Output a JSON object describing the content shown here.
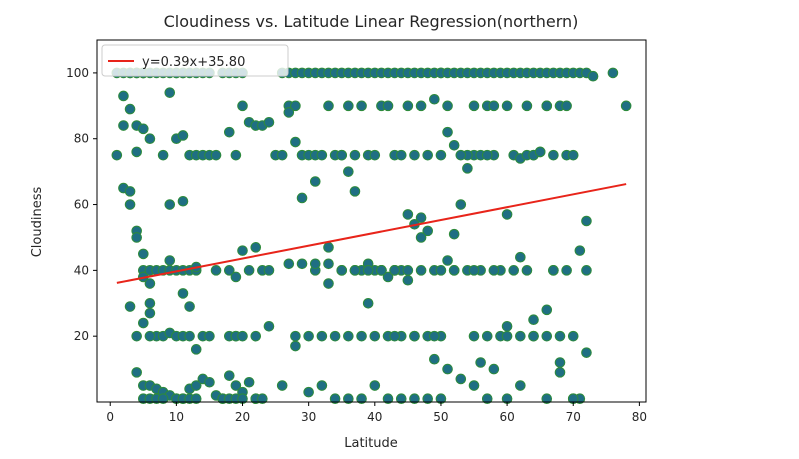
{
  "chart_data": {
    "type": "scatter",
    "title": "Cloudiness vs. Latitude Linear Regression(northern)",
    "xlabel": "Latitude",
    "ylabel": "Cloudiness",
    "xlim": [
      -2,
      81
    ],
    "ylim": [
      0,
      110
    ],
    "xticks": [
      "0",
      "10",
      "20",
      "30",
      "40",
      "50",
      "60",
      "70",
      "80"
    ],
    "yticks": [
      "20",
      "40",
      "60",
      "80",
      "100"
    ],
    "grid": false,
    "legend_placement": "upper-left",
    "colors": {
      "marker_fill": "#1f6f83",
      "marker_edge": "#2e8b3a",
      "line": "#e8241a",
      "frame": "#000000"
    },
    "series": [
      {
        "type": "scatter",
        "x": [
          1,
          2,
          3,
          3,
          4,
          4,
          5,
          5,
          5,
          6,
          7,
          8,
          9,
          10,
          10,
          11,
          11,
          12,
          13,
          14,
          15,
          17,
          18,
          19,
          20,
          1,
          2,
          3,
          4,
          5,
          6,
          8,
          9,
          10,
          11,
          12,
          13,
          14,
          15,
          16,
          18,
          19,
          20,
          21,
          22,
          23,
          24,
          25,
          2,
          3,
          3,
          4,
          4,
          5,
          5,
          5,
          6,
          6,
          7,
          8,
          9,
          9,
          10,
          11,
          11,
          12,
          12,
          13,
          18,
          20,
          22,
          23,
          24,
          3,
          4,
          5,
          6,
          6,
          7,
          8,
          9,
          10,
          11,
          12,
          13,
          14,
          15,
          18,
          19,
          19,
          20,
          22,
          4,
          5,
          6,
          7,
          8,
          9,
          10,
          11,
          12,
          13,
          14,
          15,
          16,
          17,
          18,
          19,
          20,
          21,
          22,
          5,
          6,
          7,
          8,
          10,
          11,
          12,
          13,
          17,
          18,
          19,
          20,
          22,
          23,
          26,
          27,
          28,
          29,
          30,
          31,
          32,
          33,
          34,
          35,
          36,
          37,
          38,
          39,
          40,
          41,
          42,
          43,
          44,
          45,
          46,
          47,
          48,
          49,
          50,
          26,
          27,
          28,
          29,
          30,
          31,
          32,
          33,
          34,
          35,
          36,
          37,
          38,
          39,
          40,
          41,
          42,
          43,
          44,
          45,
          46,
          47,
          48,
          49,
          50,
          27,
          28,
          29,
          31,
          33,
          35,
          36,
          37,
          38,
          39,
          40,
          41,
          42,
          43,
          44,
          45,
          46,
          47,
          48,
          49,
          28,
          30,
          32,
          34,
          36,
          38,
          40,
          42,
          44,
          46,
          48,
          50,
          26,
          28,
          30,
          32,
          34,
          36,
          38,
          40,
          42,
          44,
          46,
          48,
          50,
          31,
          33,
          35,
          37,
          39,
          41,
          43,
          45,
          47,
          49,
          50,
          51,
          52,
          53,
          54,
          55,
          56,
          57,
          58,
          59,
          60,
          61,
          62,
          63,
          64,
          65,
          66,
          67,
          68,
          69,
          70,
          71,
          72,
          73,
          50,
          51,
          52,
          53,
          54,
          55,
          56,
          57,
          58,
          59,
          60,
          61,
          62,
          63,
          64,
          65,
          66,
          67,
          68,
          69,
          51,
          52,
          54,
          55,
          56,
          57,
          58,
          60,
          62,
          63,
          64,
          65,
          66,
          67,
          69,
          70,
          71,
          51,
          53,
          55,
          57,
          59,
          60,
          62,
          64,
          66,
          68,
          70,
          72,
          52,
          54,
          56,
          58,
          60,
          62,
          64,
          66,
          68,
          70,
          71,
          51,
          53,
          55,
          57,
          60,
          64,
          66,
          68,
          70,
          72,
          76,
          78,
          2,
          4,
          6,
          9,
          11,
          13,
          16,
          19,
          21,
          24,
          27,
          29,
          31,
          33,
          35,
          37,
          39,
          41,
          43,
          45,
          47,
          52,
          55,
          58,
          61,
          63,
          67,
          69,
          72,
          43,
          46,
          49
        ],
        "y": [
          100,
          100,
          100,
          100,
          100,
          100,
          100,
          100,
          100,
          100,
          100,
          100,
          100,
          100,
          100,
          100,
          100,
          100,
          100,
          100,
          100,
          100,
          100,
          100,
          100,
          75,
          93,
          89,
          84,
          83,
          80,
          75,
          94,
          80,
          81,
          75,
          75,
          75,
          75,
          75,
          82,
          75,
          90,
          85,
          84,
          84,
          85,
          75,
          65,
          64,
          60,
          52,
          50,
          45,
          40,
          38,
          40,
          36,
          40,
          40,
          43,
          40,
          40,
          40,
          33,
          29,
          40,
          40,
          40,
          46,
          47,
          40,
          40,
          29,
          20,
          24,
          30,
          27,
          20,
          20,
          21,
          20,
          20,
          20,
          16,
          20,
          20,
          20,
          20,
          20,
          20,
          20,
          9,
          5,
          5,
          4,
          3,
          2,
          1,
          1,
          4,
          5,
          7,
          6,
          2,
          1,
          8,
          5,
          3,
          6,
          1,
          1,
          1,
          1,
          1,
          1,
          1,
          1,
          1,
          1,
          1,
          1,
          1,
          1,
          1,
          100,
          100,
          100,
          100,
          100,
          100,
          100,
          100,
          100,
          100,
          100,
          100,
          100,
          100,
          100,
          100,
          100,
          100,
          100,
          100,
          100,
          100,
          100,
          100,
          100,
          75,
          90,
          90,
          75,
          75,
          75,
          75,
          90,
          75,
          75,
          90,
          75,
          90,
          75,
          75,
          90,
          90,
          75,
          75,
          90,
          75,
          90,
          75,
          92,
          75,
          88,
          79,
          62,
          67,
          47,
          75,
          70,
          64,
          40,
          42,
          40,
          40,
          38,
          40,
          40,
          37,
          54,
          56,
          52,
          40,
          20,
          20,
          20,
          20,
          20,
          20,
          20,
          20,
          20,
          20,
          20,
          20,
          5,
          17,
          3,
          5,
          1,
          1,
          1,
          5,
          1,
          1,
          1,
          1,
          1,
          40,
          36,
          40,
          40,
          30,
          40,
          40,
          57,
          50,
          13,
          100,
          100,
          100,
          100,
          100,
          100,
          100,
          100,
          100,
          100,
          100,
          100,
          100,
          100,
          100,
          100,
          100,
          100,
          100,
          100,
          100,
          100,
          100,
          99,
          40,
          90,
          40,
          60,
          40,
          75,
          40,
          90,
          75,
          40,
          90,
          75,
          74,
          90,
          75,
          76,
          90,
          75,
          90,
          75,
          82,
          78,
          75,
          90,
          75,
          75,
          90,
          57,
          44,
          75,
          75,
          76,
          90,
          40,
          90,
          75,
          46,
          43,
          75,
          20,
          20,
          20,
          20,
          20,
          20,
          20,
          20,
          20,
          15,
          51,
          71,
          12,
          10,
          23,
          5,
          25,
          28,
          9,
          1,
          1,
          10,
          7,
          5,
          1,
          1,
          20,
          1,
          12,
          1,
          55,
          100,
          90,
          84,
          76,
          20,
          60,
          61,
          41,
          40,
          38,
          40,
          23,
          42,
          42,
          42,
          42,
          40,
          40,
          40,
          40,
          40,
          40,
          40,
          40,
          40,
          40,
          40,
          40,
          40,
          40,
          40,
          20,
          20,
          20
        ]
      },
      {
        "type": "line",
        "name": "y=0.39x+35.80",
        "x": [
          1,
          78
        ],
        "y": [
          36.19,
          66.22
        ]
      }
    ]
  }
}
